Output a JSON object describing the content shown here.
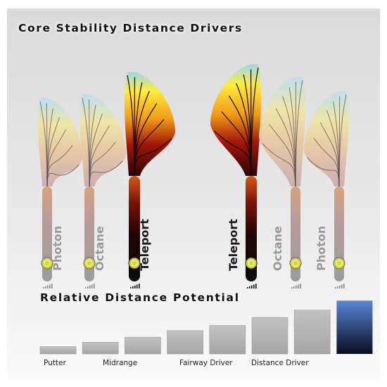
{
  "chart_data": [
    {
      "type": "flight-path diagram",
      "title": "Core Stability Distance Drivers",
      "paths": [
        {
          "name": "Photon",
          "color": "#9a9a9a"
        },
        {
          "name": "Octane",
          "color": "#9a9a9a"
        },
        {
          "name": "Teleport",
          "color": "#1a1a1a"
        },
        {
          "name": "Teleport",
          "color": "#1a1a1a"
        },
        {
          "name": "Octane",
          "color": "#9a9a9a"
        },
        {
          "name": "Photon",
          "color": "#9a9a9a"
        }
      ]
    },
    {
      "type": "bar",
      "title": "Relative Distance Potential",
      "category_labels": [
        "Putter",
        "Midrange",
        "Fairway Driver",
        "Distance Driver"
      ],
      "values": [
        1,
        1.6,
        2.3,
        3.2,
        3.9,
        5.0,
        6.0,
        7.3
      ],
      "ylim": [
        0,
        8
      ],
      "highlight_index": 7,
      "colors": {
        "bar": "#b4b4b4",
        "highlight_top": "#5b86d6",
        "highlight_bottom": "#070d1e"
      }
    }
  ]
}
